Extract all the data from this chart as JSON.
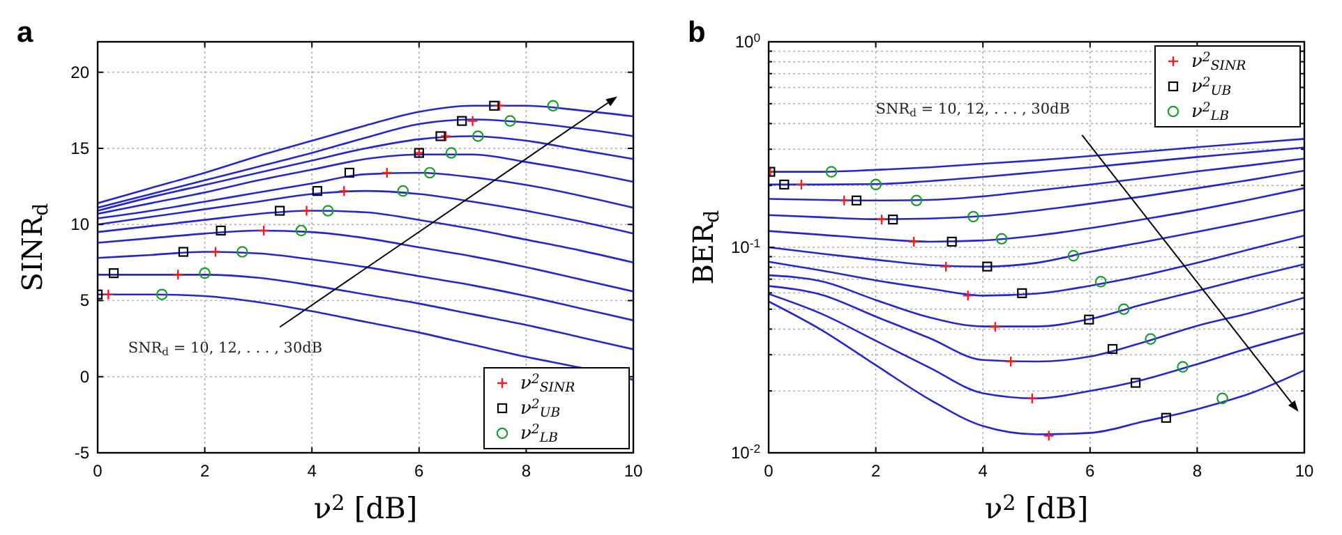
{
  "chart_data": [
    {
      "type": "line",
      "title": "a",
      "xlabel": "ν$^{2}$ [dB]",
      "ylabel": "SINR$_{d}$",
      "x": [
        0,
        1,
        2,
        3,
        4,
        5,
        6,
        7,
        8,
        9,
        10
      ],
      "xlim": [
        0,
        10
      ],
      "xticks": [
        0,
        2,
        4,
        6,
        8,
        10
      ],
      "ylim": [
        -5,
        22
      ],
      "yticks": [
        -5,
        0,
        5,
        10,
        15,
        20
      ],
      "grid": true,
      "legend": "bottom right",
      "annotations": [
        "SNR$_{d}$ = 10, 12, . . . , 30dB"
      ],
      "series": [
        {
          "color": "#2626c9",
          "values": [
            5.4,
            5.4,
            5.3,
            4.9,
            4.3,
            3.6,
            2.9,
            2.1,
            1.3,
            0.6,
            -0.2
          ]
        },
        {
          "color": "#2626c9",
          "values": [
            6.7,
            6.7,
            6.7,
            6.5,
            6.0,
            5.4,
            4.8,
            4.1,
            3.4,
            2.6,
            1.8
          ]
        },
        {
          "color": "#2626c9",
          "values": [
            7.8,
            8.0,
            8.2,
            8.1,
            7.7,
            7.2,
            6.6,
            6.0,
            5.3,
            4.5,
            3.7
          ]
        },
        {
          "color": "#2626c9",
          "values": [
            8.8,
            9.1,
            9.4,
            9.6,
            9.5,
            9.1,
            8.5,
            7.9,
            7.2,
            6.4,
            5.6
          ]
        },
        {
          "color": "#2626c9",
          "values": [
            9.5,
            9.9,
            10.3,
            10.7,
            10.9,
            10.8,
            10.3,
            9.7,
            9.0,
            8.3,
            7.5
          ]
        },
        {
          "color": "#2626c9",
          "values": [
            10.0,
            10.5,
            11.0,
            11.5,
            12.0,
            12.2,
            12.0,
            11.5,
            10.9,
            10.2,
            9.4
          ]
        },
        {
          "color": "#2626c9",
          "values": [
            10.4,
            10.9,
            11.5,
            12.1,
            12.7,
            13.3,
            13.4,
            13.1,
            12.6,
            11.9,
            11.1
          ]
        },
        {
          "color": "#2626c9",
          "values": [
            10.7,
            11.4,
            12.1,
            12.9,
            13.6,
            14.3,
            14.6,
            14.6,
            14.1,
            13.5,
            12.8
          ]
        },
        {
          "color": "#2626c9",
          "values": [
            10.9,
            11.8,
            12.6,
            13.4,
            14.2,
            15.0,
            15.6,
            15.8,
            15.5,
            14.9,
            14.3
          ]
        },
        {
          "color": "#2626c9",
          "values": [
            11.1,
            12.0,
            12.9,
            13.8,
            14.7,
            15.7,
            16.6,
            16.9,
            16.7,
            16.3,
            15.8
          ]
        },
        {
          "color": "#2626c9",
          "values": [
            11.4,
            12.4,
            13.4,
            14.5,
            15.5,
            16.5,
            17.4,
            17.8,
            17.8,
            17.5,
            17.1
          ]
        },
        {
          "type": "scatter",
          "name": "ν$^{2}$$_{SINR}$",
          "color": "#e8202a",
          "marker": "cross",
          "x": [
            0.2,
            1.5,
            2.2,
            3.1,
            3.9,
            4.6,
            5.4,
            6.0,
            6.5,
            7.0,
            7.5
          ],
          "values": [
            5.4,
            6.7,
            8.2,
            9.6,
            10.9,
            12.2,
            13.4,
            14.7,
            15.8,
            16.8,
            17.8
          ]
        },
        {
          "type": "scatter",
          "name": "ν$^{2}$$_{UB}$",
          "color": "#000000",
          "marker": "square",
          "x": [
            0.0,
            0.3,
            1.6,
            2.3,
            3.4,
            4.1,
            4.7,
            6.0,
            6.4,
            6.8,
            7.4
          ],
          "values": [
            5.4,
            6.8,
            8.2,
            9.6,
            10.9,
            12.2,
            13.4,
            14.7,
            15.8,
            16.8,
            17.8
          ]
        },
        {
          "type": "scatter",
          "name": "ν$^{2}$$_{LB}$",
          "color": "#1f9a2f",
          "marker": "circle",
          "x": [
            1.2,
            2.0,
            2.7,
            3.8,
            4.3,
            5.7,
            6.2,
            6.6,
            7.1,
            7.7,
            8.5
          ],
          "values": [
            5.4,
            6.8,
            8.2,
            9.6,
            10.9,
            12.2,
            13.4,
            14.7,
            15.8,
            16.8,
            17.8
          ]
        }
      ]
    },
    {
      "type": "line",
      "title": "b",
      "xlabel": "ν$^{2}$ [dB]",
      "ylabel": "BER$_{d}$",
      "log": true,
      "x": [
        0,
        1,
        2,
        3,
        4,
        5,
        6,
        7,
        8,
        9,
        10
      ],
      "xlim": [
        0,
        10
      ],
      "xticks": [
        0,
        2,
        4,
        6,
        8,
        10
      ],
      "ylim": [
        0.01,
        1
      ],
      "yticks": [
        {
          "value": 0.01,
          "label": "10$^{-2}$"
        },
        {
          "value": 0.02,
          "label": null
        },
        {
          "value": 0.03,
          "label": null
        },
        {
          "value": 0.04,
          "label": null
        },
        {
          "value": 0.05,
          "label": null
        },
        {
          "value": 0.06,
          "label": null
        },
        {
          "value": 0.07,
          "label": null
        },
        {
          "value": 0.08,
          "label": null
        },
        {
          "value": 0.09,
          "label": null
        },
        {
          "value": 0.1,
          "label": "10$^{-1}$"
        },
        {
          "value": 0.2,
          "label": null
        },
        {
          "value": 0.3,
          "label": null
        },
        {
          "value": 0.4,
          "label": null
        },
        {
          "value": 0.5,
          "label": null
        },
        {
          "value": 0.6,
          "label": null
        },
        {
          "value": 0.7,
          "label": null
        },
        {
          "value": 0.8,
          "label": null
        },
        {
          "value": 0.9,
          "label": null
        },
        {
          "value": 1,
          "label": "10$^{0}$"
        }
      ],
      "grid": true,
      "legend": "top right",
      "annotations": [
        "SNR$_{d}$ = 10, 12, . . . , 30dB"
      ],
      "series": [
        {
          "color": "#2626c9",
          "values": [
            0.233,
            0.233,
            0.238,
            0.245,
            0.255,
            0.265,
            0.278,
            0.292,
            0.307,
            0.322,
            0.337
          ]
        },
        {
          "color": "#2626c9",
          "values": [
            0.202,
            0.202,
            0.203,
            0.21,
            0.22,
            0.232,
            0.245,
            0.26,
            0.275,
            0.29,
            0.306
          ]
        },
        {
          "color": "#2626c9",
          "values": [
            0.172,
            0.17,
            0.169,
            0.17,
            0.177,
            0.189,
            0.202,
            0.217,
            0.234,
            0.251,
            0.27
          ]
        },
        {
          "color": "#2626c9",
          "values": [
            0.1435,
            0.14,
            0.137,
            0.138,
            0.142,
            0.151,
            0.163,
            0.177,
            0.194,
            0.213,
            0.236
          ]
        },
        {
          "color": "#2626c9",
          "values": [
            0.12,
            0.115,
            0.11,
            0.1065,
            0.108,
            0.114,
            0.124,
            0.137,
            0.152,
            0.171,
            0.194
          ]
        },
        {
          "color": "#2626c9",
          "values": [
            0.1,
            0.093,
            0.087,
            0.082,
            0.0805,
            0.084,
            0.095,
            0.106,
            0.119,
            0.134,
            0.152
          ]
        },
        {
          "color": "#2626c9",
          "values": [
            0.0851,
            0.077,
            0.069,
            0.063,
            0.0582,
            0.0595,
            0.065,
            0.073,
            0.084,
            0.098,
            0.114
          ]
        },
        {
          "color": "#2626c9",
          "values": [
            0.0731,
            0.0682,
            0.0554,
            0.0456,
            0.0412,
            0.0412,
            0.0448,
            0.0528,
            0.0614,
            0.0716,
            0.0828
          ]
        },
        {
          "color": "#2626c9",
          "values": [
            0.0648,
            0.0586,
            0.046,
            0.0362,
            0.0283,
            0.0278,
            0.0294,
            0.0345,
            0.0415,
            0.048,
            0.0569
          ]
        },
        {
          "color": "#2626c9",
          "values": [
            0.0593,
            0.0473,
            0.0351,
            0.026,
            0.0195,
            0.0184,
            0.02,
            0.0227,
            0.027,
            0.0325,
            0.0384
          ]
        },
        {
          "color": "#2626c9",
          "values": [
            0.0545,
            0.0394,
            0.0267,
            0.0182,
            0.0135,
            0.0123,
            0.0125,
            0.0142,
            0.0163,
            0.0195,
            0.0252
          ]
        },
        {
          "type": "scatter",
          "name": "ν$^{2}$$_{SINR}$",
          "color": "#e8202a",
          "marker": "cross",
          "x": [
            0.03,
            0.61,
            1.41,
            2.11,
            2.71,
            3.31,
            3.72,
            4.23,
            4.52,
            4.92,
            5.23
          ],
          "values": [
            0.233,
            0.202,
            0.169,
            0.1365,
            0.1065,
            0.0806,
            0.0582,
            0.041,
            0.0278,
            0.0184,
            0.0121
          ]
        },
        {
          "type": "scatter",
          "name": "ν$^{2}$$_{UB}$",
          "color": "#000000",
          "marker": "square",
          "x": [
            0.03,
            0.29,
            1.64,
            2.32,
            3.42,
            4.08,
            4.73,
            5.98,
            6.42,
            6.85,
            7.42
          ],
          "values": [
            0.233,
            0.202,
            0.169,
            0.1365,
            0.1065,
            0.0806,
            0.0598,
            0.0445,
            0.032,
            0.0219,
            0.0148
          ]
        },
        {
          "type": "scatter",
          "name": "ν$^{2}$$_{LB}$",
          "color": "#1f9a2f",
          "marker": "circle",
          "x": [
            1.17,
            2.0,
            2.76,
            3.82,
            4.35,
            5.69,
            6.2,
            6.63,
            7.13,
            7.73,
            8.47
          ],
          "values": [
            0.233,
            0.202,
            0.169,
            0.141,
            0.11,
            0.091,
            0.068,
            0.05,
            0.0358,
            0.0262,
            0.0184
          ]
        }
      ]
    }
  ]
}
